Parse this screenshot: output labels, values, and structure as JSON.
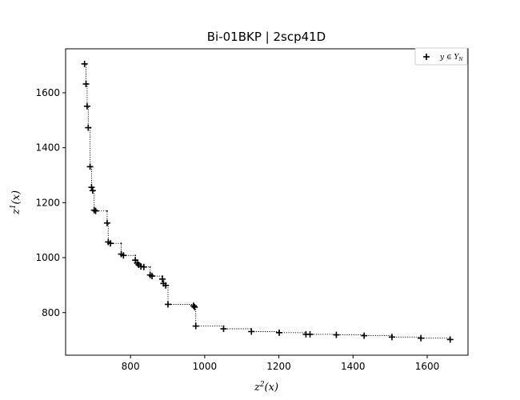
{
  "chart_data": {
    "type": "scatter",
    "title": "Bi-01BKP | 2scp41D",
    "xlabel": "z²(x)",
    "ylabel": "z¹(x)",
    "xlim": [
      625,
      1710
    ],
    "ylim": [
      645,
      1760
    ],
    "xticks": [
      800,
      1000,
      1200,
      1400,
      1600
    ],
    "yticks": [
      800,
      1000,
      1200,
      1400,
      1600
    ],
    "legend": {
      "position": "top-right",
      "entries": [
        "y ∈ Y_N"
      ]
    },
    "grid": false,
    "series": [
      {
        "name": "y ∈ Y_N",
        "marker": "plus",
        "color": "#000000",
        "connect": "dotted-staircase",
        "points": [
          [
            676,
            1705
          ],
          [
            680,
            1632
          ],
          [
            683,
            1551
          ],
          [
            686,
            1473
          ],
          [
            691,
            1331
          ],
          [
            695,
            1256
          ],
          [
            698,
            1244
          ],
          [
            702,
            1173
          ],
          [
            706,
            1170
          ],
          [
            737,
            1126
          ],
          [
            740,
            1057
          ],
          [
            746,
            1052
          ],
          [
            775,
            1013
          ],
          [
            781,
            1008
          ],
          [
            813,
            991
          ],
          [
            818,
            980
          ],
          [
            822,
            974
          ],
          [
            828,
            968
          ],
          [
            836,
            966
          ],
          [
            853,
            937
          ],
          [
            858,
            933
          ],
          [
            886,
            922
          ],
          [
            889,
            906
          ],
          [
            895,
            899
          ],
          [
            901,
            830
          ],
          [
            970,
            825
          ],
          [
            973,
            820
          ],
          [
            976,
            751
          ],
          [
            1051,
            741
          ],
          [
            1126,
            731
          ],
          [
            1201,
            727
          ],
          [
            1273,
            721
          ],
          [
            1284,
            721
          ],
          [
            1355,
            719
          ],
          [
            1430,
            716
          ],
          [
            1505,
            711
          ],
          [
            1583,
            707
          ],
          [
            1662,
            702
          ]
        ]
      }
    ]
  }
}
